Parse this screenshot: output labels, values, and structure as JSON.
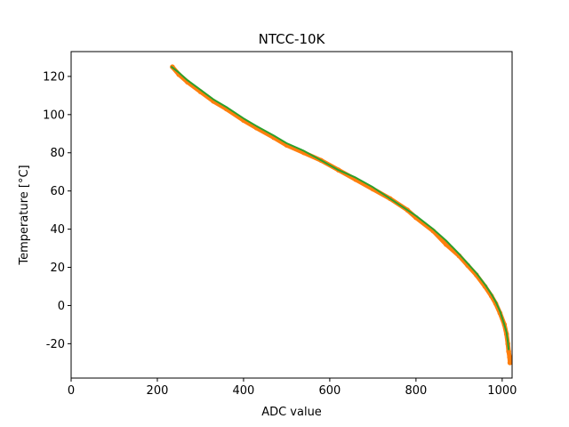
{
  "chart_data": {
    "type": "line",
    "title": "NTCC-10K",
    "xlabel": "ADC value",
    "ylabel": "Temperature [°C]",
    "xlim": [
      0,
      1023
    ],
    "ylim": [
      -38,
      133
    ],
    "xticks": [
      0,
      200,
      400,
      600,
      800,
      1000
    ],
    "yticks": [
      -20,
      0,
      20,
      40,
      60,
      80,
      100,
      120
    ],
    "grid": false,
    "legend": "none",
    "series": [
      {
        "color": "#ff7f0e",
        "style": "markers",
        "x": [
          235,
          250,
          270,
          300,
          330,
          360,
          400,
          430,
          470,
          500,
          540,
          580,
          620,
          660,
          700,
          740,
          780,
          800,
          840,
          870,
          900,
          920,
          940,
          960,
          975,
          985,
          995,
          1005,
          1010,
          1013,
          1015,
          1017,
          1018
        ],
        "y": [
          125,
          121,
          117,
          112,
          107,
          103,
          97,
          93,
          88,
          84,
          80,
          76,
          71,
          66,
          61,
          56,
          50,
          46,
          39,
          32,
          26,
          21,
          16,
          10,
          5,
          1,
          -4,
          -10,
          -15,
          -20,
          -24,
          -27,
          -30
        ]
      },
      {
        "color": "#2ca02c",
        "style": "line",
        "x": [
          233,
          250,
          270,
          300,
          330,
          360,
          400,
          430,
          470,
          500,
          540,
          580,
          620,
          660,
          700,
          740,
          780,
          800,
          840,
          870,
          900,
          920,
          940,
          960,
          975,
          985,
          995,
          1005,
          1010,
          1013,
          1015
        ],
        "y": [
          125,
          122,
          118,
          113,
          108,
          104,
          98,
          94,
          89,
          85,
          81,
          76,
          71,
          67,
          62,
          56,
          50,
          47,
          40,
          34,
          27,
          22,
          17,
          11,
          6,
          2,
          -3,
          -10,
          -14,
          -19,
          -23
        ]
      }
    ]
  }
}
